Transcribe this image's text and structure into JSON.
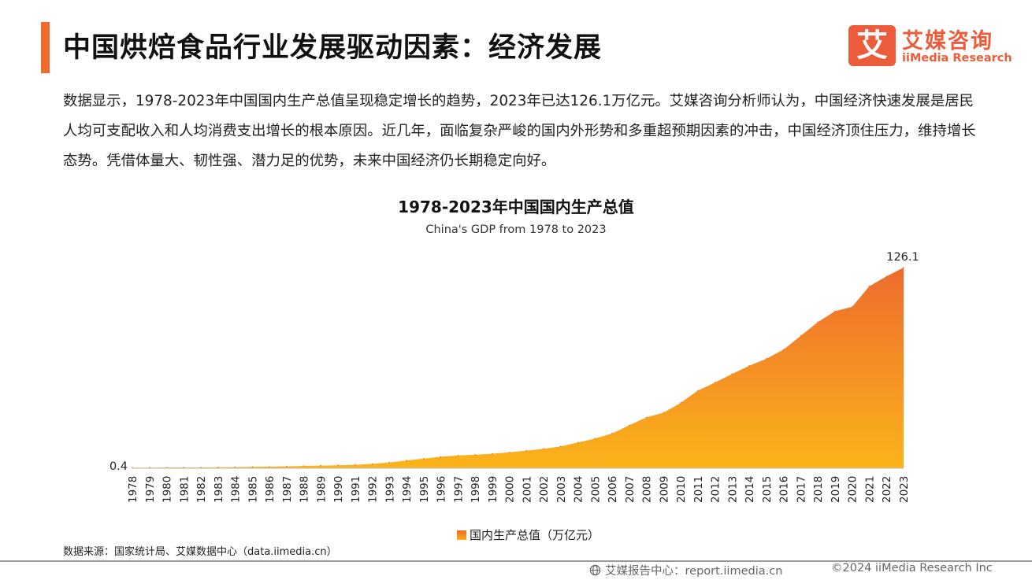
{
  "header": {
    "title": "中国烘焙食品行业发展驱动因素：经济发展",
    "logo_mark": "艾",
    "logo_cn": "艾媒咨询",
    "logo_en": "iiMedia Research"
  },
  "intro": "数据显示，1978-2023年中国国内生产总值呈现稳定增长的趋势，2023年已达126.1万亿元。艾媒咨询分析师认为，中国经济快速发展是居民人均可支配收入和人均消费支出增长的根本原因。近几年，面临复杂严峻的国内外形势和多重超预期因素的冲击，中国经济顶住压力，维持增长态势。凭借体量大、韧性强、潜力足的优势，未来中国经济仍长期稳定向好。",
  "chart_data": {
    "type": "area",
    "title": "1978-2023年中国国内生产总值",
    "subtitle": "China's GDP from 1978 to 2023",
    "xlabel": "",
    "ylabel": "",
    "x": [
      "1978",
      "1979",
      "1980",
      "1981",
      "1982",
      "1983",
      "1984",
      "1985",
      "1986",
      "1987",
      "1988",
      "1989",
      "1990",
      "1991",
      "1992",
      "1993",
      "1994",
      "1995",
      "1996",
      "1997",
      "1998",
      "1999",
      "2000",
      "2001",
      "2002",
      "2003",
      "2004",
      "2005",
      "2006",
      "2007",
      "2008",
      "2009",
      "2010",
      "2011",
      "2012",
      "2013",
      "2014",
      "2015",
      "2016",
      "2017",
      "2018",
      "2019",
      "2020",
      "2021",
      "2022",
      "2023"
    ],
    "series": [
      {
        "name": "国内生产总值（万亿元）",
        "values": [
          0.4,
          0.4,
          0.5,
          0.5,
          0.5,
          0.6,
          0.7,
          0.9,
          1.0,
          1.2,
          1.5,
          1.7,
          1.9,
          2.2,
          2.7,
          3.6,
          4.9,
          6.1,
          7.2,
          8.0,
          8.5,
          9.1,
          10.0,
          11.1,
          12.2,
          13.7,
          16.2,
          18.7,
          21.9,
          27.0,
          32.0,
          34.9,
          41.2,
          48.8,
          53.9,
          59.3,
          64.4,
          68.9,
          74.6,
          83.2,
          91.9,
          98.7,
          101.4,
          114.4,
          120.5,
          126.1
        ]
      }
    ],
    "data_labels": {
      "first": "0.4",
      "last": "126.1"
    },
    "ylim": [
      0,
      126.1
    ],
    "legend": "bottom",
    "grid": false,
    "colors": {
      "top": "#ee6b2d",
      "bottom": "#fbb41a"
    }
  },
  "footer": {
    "source": "数据来源：国家统计局、艾媒数据中心（data.iimedia.cn）",
    "report_site": "艾媒报告中心：report.iimedia.cn",
    "copyright": "©2024  iiMedia Research  Inc"
  }
}
